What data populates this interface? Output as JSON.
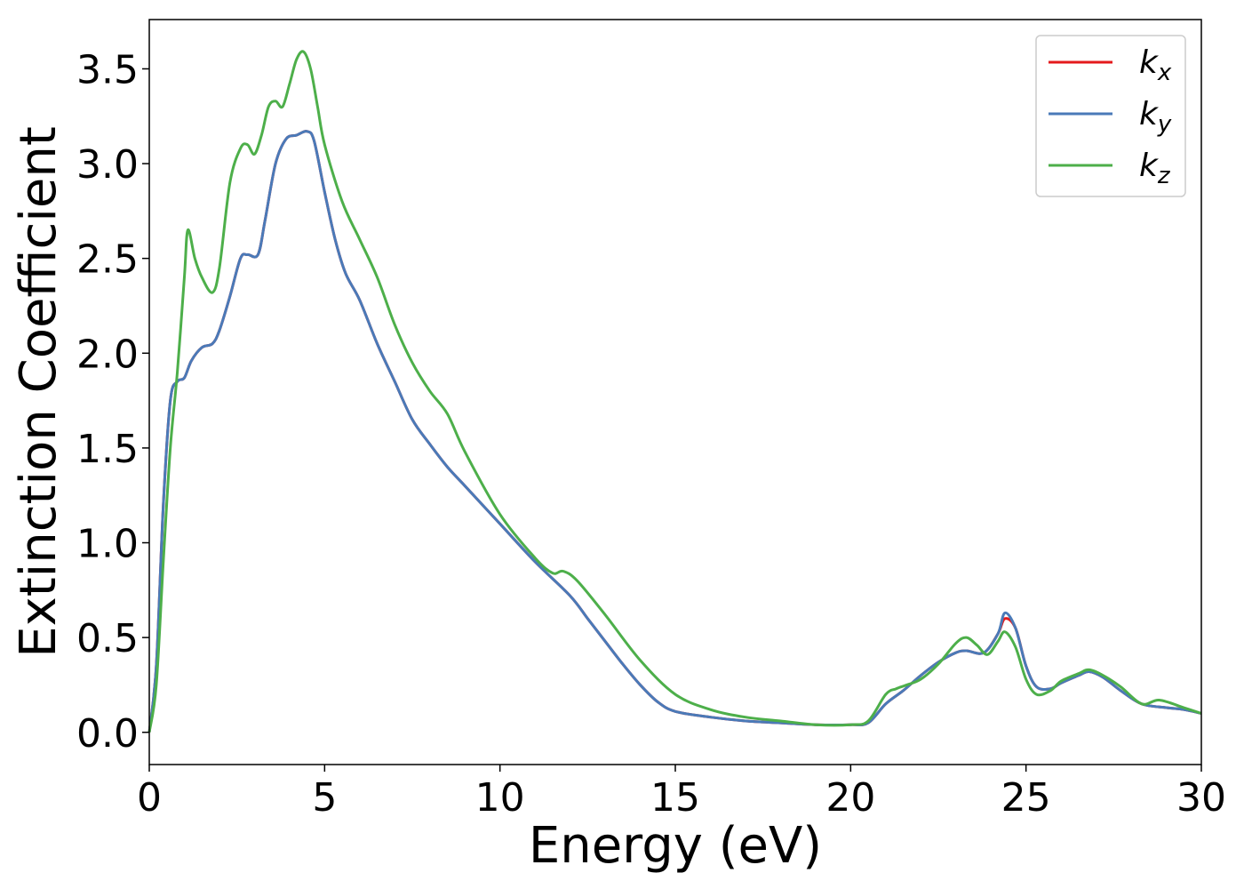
{
  "chart_data": {
    "type": "line",
    "xlabel": "Energy (eV)",
    "ylabel": "Extinction Coefficient",
    "xlim": [
      0,
      30
    ],
    "ylim": [
      -0.17,
      3.76
    ],
    "xticks": [
      0,
      5,
      10,
      15,
      20,
      25,
      30
    ],
    "xtick_labels": [
      "0",
      "5",
      "10",
      "15",
      "20",
      "25",
      "30"
    ],
    "yticks": [
      0.0,
      0.5,
      1.0,
      1.5,
      2.0,
      2.5,
      3.0,
      3.5
    ],
    "ytick_labels": [
      "0.0",
      "0.5",
      "1.0",
      "1.5",
      "2.0",
      "2.5",
      "3.0",
      "3.5"
    ],
    "grid": false,
    "legend": "top-right",
    "series": [
      {
        "name": "k_x",
        "label_main": "k",
        "label_sub": "x",
        "color": "#e41a1c",
        "x": [
          0,
          0.2,
          0.4,
          0.6,
          0.8,
          1.0,
          1.2,
          1.5,
          1.8,
          2.0,
          2.3,
          2.6,
          2.8,
          3.1,
          3.3,
          3.6,
          3.9,
          4.2,
          4.5,
          4.7,
          5.0,
          5.3,
          5.6,
          6.0,
          6.5,
          7.0,
          7.5,
          8.0,
          8.5,
          9.0,
          10.0,
          11.0,
          12.0,
          12.5,
          13.0,
          13.5,
          14.0,
          14.5,
          15.0,
          16.0,
          17.0,
          18.0,
          19.0,
          20.0,
          20.5,
          21.0,
          21.5,
          22.0,
          22.5,
          23.0,
          23.3,
          23.8,
          24.2,
          24.4,
          24.7,
          25.0,
          25.3,
          25.7,
          26.0,
          26.5,
          26.8,
          27.2,
          27.7,
          28.3,
          29.0,
          29.5,
          30.0
        ],
        "values": [
          0.0,
          0.35,
          1.2,
          1.75,
          1.85,
          1.87,
          1.96,
          2.03,
          2.05,
          2.12,
          2.3,
          2.5,
          2.52,
          2.52,
          2.7,
          3.0,
          3.13,
          3.15,
          3.17,
          3.12,
          2.85,
          2.6,
          2.42,
          2.28,
          2.05,
          1.85,
          1.65,
          1.52,
          1.4,
          1.3,
          1.1,
          0.9,
          0.72,
          0.6,
          0.48,
          0.36,
          0.25,
          0.16,
          0.11,
          0.08,
          0.06,
          0.05,
          0.04,
          0.04,
          0.05,
          0.15,
          0.22,
          0.3,
          0.37,
          0.42,
          0.43,
          0.42,
          0.52,
          0.6,
          0.55,
          0.35,
          0.24,
          0.23,
          0.26,
          0.3,
          0.32,
          0.29,
          0.22,
          0.15,
          0.13,
          0.12,
          0.1
        ]
      },
      {
        "name": "k_y",
        "label_main": "k",
        "label_sub": "y",
        "color": "#4a7ab8",
        "x": [
          0,
          0.2,
          0.4,
          0.6,
          0.8,
          1.0,
          1.2,
          1.5,
          1.8,
          2.0,
          2.3,
          2.6,
          2.8,
          3.1,
          3.3,
          3.6,
          3.9,
          4.2,
          4.5,
          4.7,
          5.0,
          5.3,
          5.6,
          6.0,
          6.5,
          7.0,
          7.5,
          8.0,
          8.5,
          9.0,
          10.0,
          11.0,
          12.0,
          12.5,
          13.0,
          13.5,
          14.0,
          14.5,
          15.0,
          16.0,
          17.0,
          18.0,
          19.0,
          20.0,
          20.5,
          21.0,
          21.5,
          22.0,
          22.5,
          23.0,
          23.3,
          23.8,
          24.2,
          24.4,
          24.7,
          25.0,
          25.3,
          25.7,
          26.0,
          26.5,
          26.8,
          27.2,
          27.7,
          28.3,
          29.0,
          29.5,
          30.0
        ],
        "values": [
          0.0,
          0.35,
          1.2,
          1.75,
          1.85,
          1.87,
          1.96,
          2.03,
          2.05,
          2.12,
          2.3,
          2.5,
          2.52,
          2.52,
          2.7,
          3.0,
          3.13,
          3.15,
          3.17,
          3.12,
          2.85,
          2.6,
          2.42,
          2.28,
          2.05,
          1.85,
          1.65,
          1.52,
          1.4,
          1.3,
          1.1,
          0.9,
          0.72,
          0.6,
          0.48,
          0.36,
          0.25,
          0.16,
          0.11,
          0.08,
          0.06,
          0.05,
          0.04,
          0.04,
          0.05,
          0.15,
          0.22,
          0.3,
          0.37,
          0.42,
          0.43,
          0.42,
          0.52,
          0.63,
          0.55,
          0.35,
          0.24,
          0.23,
          0.26,
          0.3,
          0.32,
          0.29,
          0.22,
          0.15,
          0.13,
          0.12,
          0.1
        ]
      },
      {
        "name": "k_z",
        "label_main": "k",
        "label_sub": "z",
        "color": "#4daf4a",
        "x": [
          0,
          0.2,
          0.4,
          0.6,
          0.8,
          1.0,
          1.1,
          1.3,
          1.5,
          1.8,
          2.0,
          2.3,
          2.6,
          2.8,
          3.0,
          3.2,
          3.4,
          3.6,
          3.8,
          4.0,
          4.2,
          4.4,
          4.6,
          4.8,
          5.0,
          5.5,
          6.0,
          6.5,
          7.0,
          7.5,
          8.0,
          8.5,
          9.0,
          10.0,
          11.0,
          11.5,
          11.8,
          12.2,
          13.0,
          14.0,
          15.0,
          16.0,
          17.0,
          18.0,
          19.0,
          20.0,
          20.5,
          21.0,
          21.3,
          21.6,
          22.0,
          22.5,
          23.0,
          23.3,
          23.6,
          23.9,
          24.2,
          24.4,
          24.7,
          25.0,
          25.3,
          25.7,
          26.0,
          26.5,
          26.8,
          27.2,
          27.7,
          28.3,
          28.8,
          29.5,
          30.0
        ],
        "values": [
          0.0,
          0.25,
          0.9,
          1.5,
          1.9,
          2.4,
          2.65,
          2.5,
          2.4,
          2.32,
          2.45,
          2.9,
          3.08,
          3.1,
          3.05,
          3.15,
          3.3,
          3.33,
          3.3,
          3.42,
          3.55,
          3.59,
          3.5,
          3.3,
          3.1,
          2.8,
          2.6,
          2.4,
          2.15,
          1.95,
          1.8,
          1.68,
          1.48,
          1.15,
          0.92,
          0.84,
          0.85,
          0.8,
          0.62,
          0.38,
          0.2,
          0.12,
          0.08,
          0.06,
          0.04,
          0.04,
          0.06,
          0.2,
          0.23,
          0.25,
          0.28,
          0.36,
          0.47,
          0.5,
          0.46,
          0.41,
          0.48,
          0.53,
          0.45,
          0.28,
          0.2,
          0.22,
          0.27,
          0.31,
          0.33,
          0.3,
          0.24,
          0.15,
          0.17,
          0.13,
          0.1
        ]
      }
    ]
  }
}
